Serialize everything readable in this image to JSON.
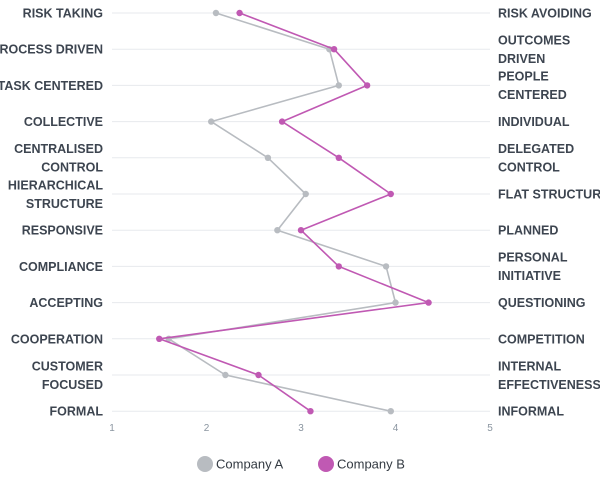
{
  "chart_data": {
    "type": "line",
    "orientation": "vertical-profile",
    "left_labels": [
      [
        "RISK TAKING"
      ],
      [
        "PROCESS DRIVEN"
      ],
      [
        "TASK CENTERED"
      ],
      [
        "COLLECTIVE"
      ],
      [
        "CENTRALISED",
        "CONTROL"
      ],
      [
        "HIERARCHICAL",
        "STRUCTURE"
      ],
      [
        "RESPONSIVE"
      ],
      [
        "COMPLIANCE"
      ],
      [
        "ACCEPTING"
      ],
      [
        "COOPERATION"
      ],
      [
        "CUSTOMER",
        "FOCUSED"
      ],
      [
        "FORMAL"
      ]
    ],
    "right_labels": [
      [
        "RISK AVOIDING"
      ],
      [
        "OUTCOMES",
        "DRIVEN"
      ],
      [
        "PEOPLE",
        "CENTERED"
      ],
      [
        "INDIVIDUAL"
      ],
      [
        "DELEGATED",
        "CONTROL"
      ],
      [
        "FLAT STRUCTURE"
      ],
      [
        "PLANNED"
      ],
      [
        "PERSONAL",
        "INITIATIVE"
      ],
      [
        "QUESTIONING"
      ],
      [
        "COMPETITION"
      ],
      [
        "INTERNAL",
        "EFFECTIVENESS"
      ],
      [
        "INFORMAL"
      ]
    ],
    "x_ticks": [
      "1",
      "2",
      "3",
      "4",
      "5"
    ],
    "xlim": [
      1,
      5
    ],
    "grid": true,
    "legend_position": "bottom",
    "series": [
      {
        "name": "Company A",
        "color": "#b8bcc1",
        "values": [
          2.1,
          3.3,
          3.4,
          2.05,
          2.65,
          3.05,
          2.75,
          3.9,
          4.0,
          1.6,
          2.2,
          3.95
        ]
      },
      {
        "name": "Company B",
        "color": "#c059b3",
        "values": [
          2.35,
          3.35,
          3.7,
          2.8,
          3.4,
          3.95,
          3.0,
          3.4,
          4.35,
          1.5,
          2.55,
          3.1
        ]
      }
    ]
  }
}
